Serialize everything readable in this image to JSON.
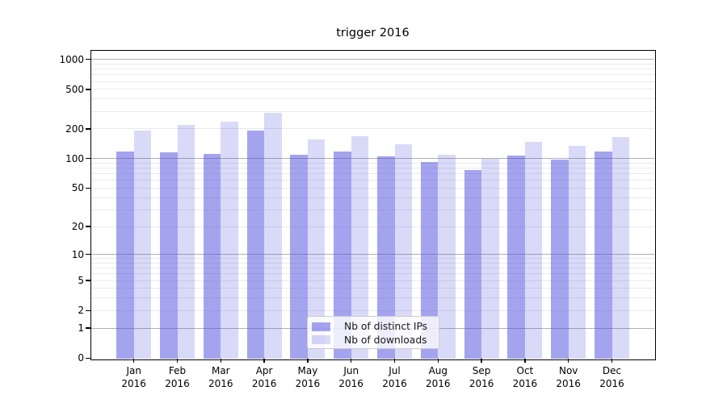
{
  "chart_data": {
    "type": "bar",
    "title": "trigger 2016",
    "categories": [
      "Jan",
      "Feb",
      "Mar",
      "Apr",
      "May",
      "Jun",
      "Jul",
      "Aug",
      "Sep",
      "Oct",
      "Nov",
      "Dec"
    ],
    "category_year": "2016",
    "series": [
      {
        "name": "Nb of distinct IPs",
        "color": "rgba(76,76,221,0.51)",
        "values": [
          118,
          116,
          112,
          192,
          109,
          117,
          105,
          92,
          77,
          107,
          97,
          119
        ]
      },
      {
        "name": "Nb of downloads",
        "color": "rgba(76,76,221,0.21)",
        "values": [
          192,
          220,
          236,
          290,
          155,
          168,
          140,
          110,
          99,
          149,
          135,
          166
        ]
      }
    ],
    "yscale": "log1p",
    "y_ticks": [
      0,
      1,
      2,
      5,
      10,
      20,
      50,
      100,
      200,
      500,
      1000
    ],
    "ylim": [
      0,
      1220
    ],
    "grid": {
      "major_ticks": [
        1,
        10,
        100,
        1000
      ],
      "major_color": "#b0b0b0",
      "minor_color": "#e9e9ef"
    },
    "legend_position": "lower center"
  }
}
